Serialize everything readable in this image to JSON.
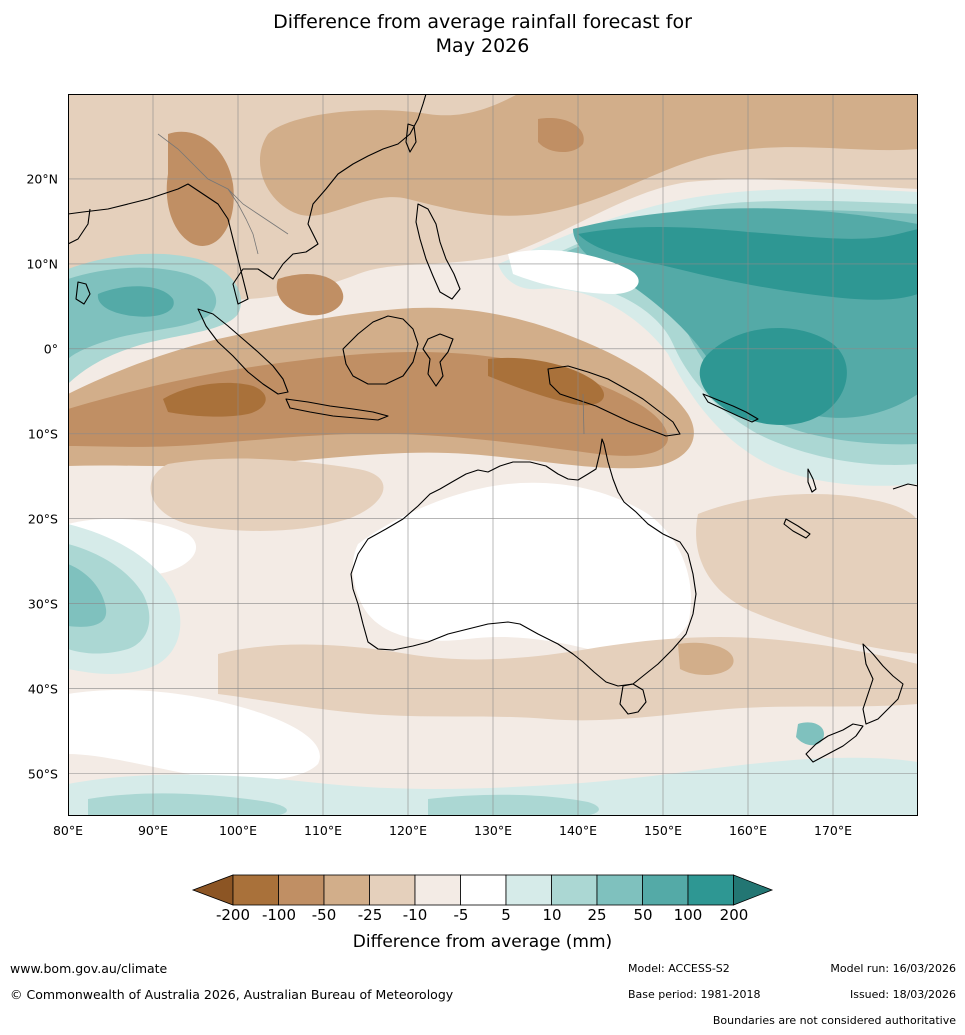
{
  "title": {
    "line1": "Difference from average rainfall forecast for",
    "line2": "May 2026"
  },
  "map": {
    "lat_labels": [
      "20°N",
      "10°N",
      "0°",
      "10°S",
      "20°S",
      "30°S",
      "40°S",
      "50°S"
    ],
    "lon_labels": [
      "80°E",
      "90°E",
      "100°E",
      "110°E",
      "120°E",
      "130°E",
      "140°E",
      "150°E",
      "160°E",
      "170°E"
    ],
    "extent": {
      "lon_min": 80,
      "lon_max": 180,
      "lat_min": -55,
      "lat_max": 30
    }
  },
  "colorbar": {
    "ticks": [
      "-200",
      "-100",
      "-50",
      "-25",
      "-10",
      "-5",
      "5",
      "10",
      "25",
      "50",
      "100",
      "200"
    ],
    "colors": [
      "#8c5524",
      "#a9713a",
      "#c08f64",
      "#d2ae8a",
      "#e5d0bc",
      "#f3ebe5",
      "#ffffff",
      "#d6ebe9",
      "#abd7d3",
      "#7fc1be",
      "#54aaa7",
      "#2e9793",
      "#237673"
    ],
    "label": "Difference from average (mm)"
  },
  "footer": {
    "website": "www.bom.gov.au/climate",
    "copyright": "© Commonwealth of Australia 2026, Australian Bureau of Meteorology",
    "model": "Model: ACCESS-S2",
    "base_period": "Base period: 1981-2018",
    "model_run": "Model run: 16/03/2026",
    "issued": "Issued: 18/03/2026",
    "disclaimer": "Boundaries are not considered authoritative"
  }
}
